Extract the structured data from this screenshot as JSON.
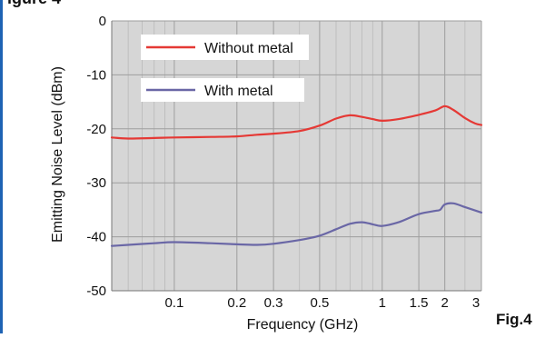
{
  "figure": {
    "top_snippet": "igure 4",
    "fig_label": "Fig.4"
  },
  "colors": {
    "plot_bg": "#d6d6d6",
    "grid": "#9e9e9e",
    "without_metal": "#e53935",
    "with_metal": "#6a67a6"
  },
  "chart_data": {
    "type": "line",
    "title": "",
    "xlabel": "Frequency (GHz)",
    "ylabel": "Emitting Noise Level (dBm)",
    "xscale": "log",
    "xlim": [
      0.05,
      3.0
    ],
    "ylim": [
      -50,
      0
    ],
    "x_ticks": [
      0.1,
      0.2,
      0.3,
      0.5,
      1,
      1.5,
      2,
      3
    ],
    "x_tick_labels": [
      "0.1",
      "0.2",
      "0.3",
      "0.5",
      "1",
      "1.5",
      "2",
      "3"
    ],
    "y_ticks": [
      0,
      -10,
      -20,
      -30,
      -40,
      -50
    ],
    "y_tick_labels": [
      "0",
      "-10",
      "-20",
      "-30",
      "-40",
      "-50"
    ],
    "grid": true,
    "legend_position": "top-left",
    "series": [
      {
        "name": "Without metal",
        "color": "#e53935",
        "points": [
          [
            0.05,
            -21.6
          ],
          [
            0.06,
            -21.8
          ],
          [
            0.08,
            -21.7
          ],
          [
            0.1,
            -21.6
          ],
          [
            0.15,
            -21.5
          ],
          [
            0.2,
            -21.4
          ],
          [
            0.25,
            -21.1
          ],
          [
            0.3,
            -20.9
          ],
          [
            0.4,
            -20.4
          ],
          [
            0.5,
            -19.4
          ],
          [
            0.6,
            -18.1
          ],
          [
            0.7,
            -17.5
          ],
          [
            0.8,
            -17.8
          ],
          [
            0.9,
            -18.2
          ],
          [
            1.0,
            -18.5
          ],
          [
            1.2,
            -18.2
          ],
          [
            1.5,
            -17.4
          ],
          [
            1.8,
            -16.6
          ],
          [
            2.0,
            -15.8
          ],
          [
            2.2,
            -16.5
          ],
          [
            2.5,
            -18.0
          ],
          [
            2.8,
            -19.0
          ],
          [
            3.0,
            -19.3
          ]
        ]
      },
      {
        "name": "With metal",
        "color": "#6a67a6",
        "points": [
          [
            0.05,
            -41.7
          ],
          [
            0.06,
            -41.5
          ],
          [
            0.08,
            -41.2
          ],
          [
            0.1,
            -41.0
          ],
          [
            0.15,
            -41.2
          ],
          [
            0.2,
            -41.4
          ],
          [
            0.25,
            -41.5
          ],
          [
            0.3,
            -41.3
          ],
          [
            0.4,
            -40.6
          ],
          [
            0.5,
            -39.8
          ],
          [
            0.6,
            -38.6
          ],
          [
            0.7,
            -37.6
          ],
          [
            0.8,
            -37.3
          ],
          [
            0.9,
            -37.7
          ],
          [
            1.0,
            -38.0
          ],
          [
            1.2,
            -37.3
          ],
          [
            1.5,
            -35.8
          ],
          [
            1.8,
            -35.2
          ],
          [
            1.9,
            -35.0
          ],
          [
            2.0,
            -34.0
          ],
          [
            2.2,
            -33.8
          ],
          [
            2.5,
            -34.5
          ],
          [
            3.0,
            -35.5
          ]
        ]
      }
    ]
  }
}
